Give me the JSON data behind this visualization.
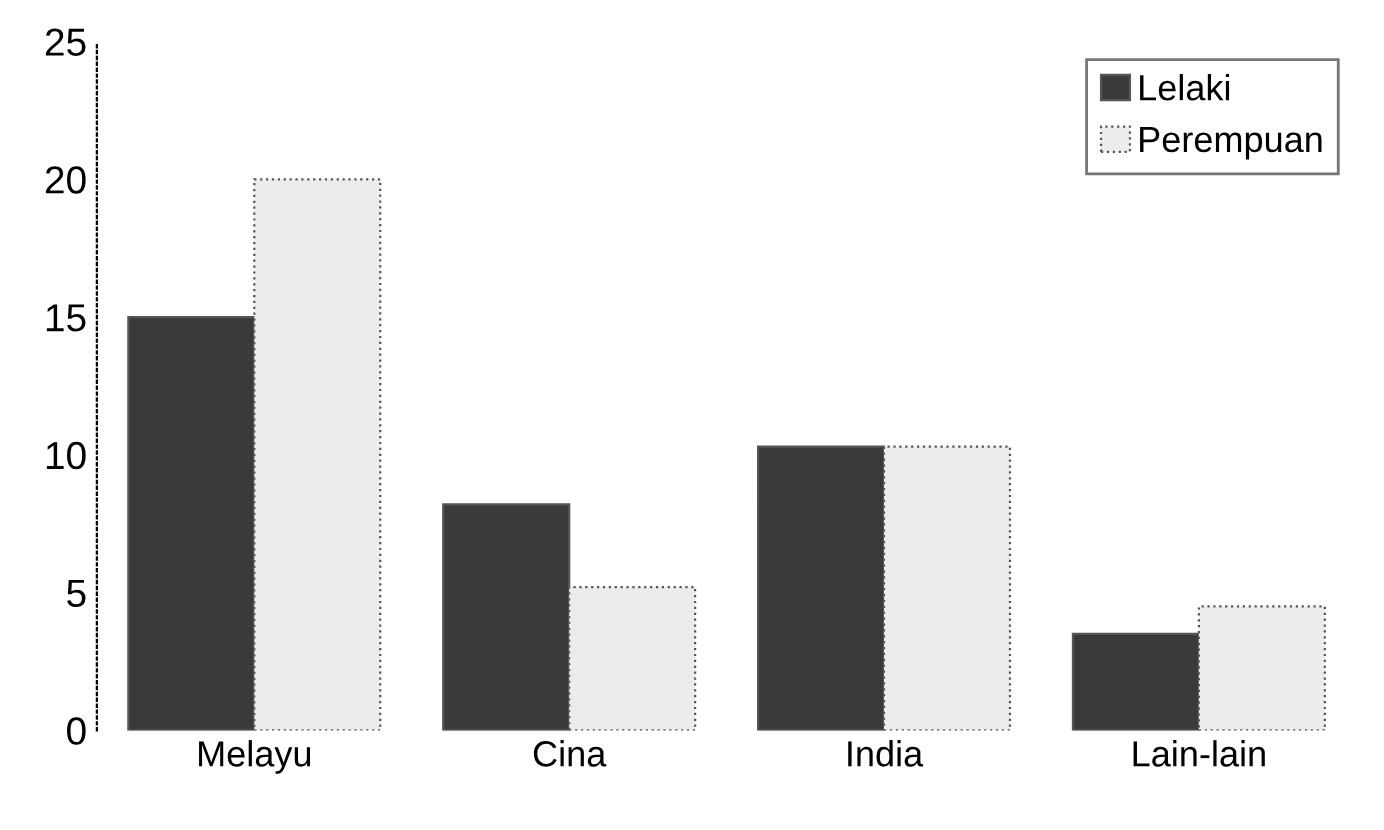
{
  "chart_data": {
    "type": "bar",
    "categories": [
      "Melayu",
      "Cina",
      "India",
      "Lain-lain"
    ],
    "series": [
      {
        "name": "Lelaki",
        "color": "#3a3a3a",
        "values": [
          15,
          8.2,
          10.3,
          3.5
        ]
      },
      {
        "name": "Perempuan",
        "color": "#ececec",
        "values": [
          20,
          5.2,
          10.3,
          4.5
        ]
      }
    ],
    "ylim": [
      0,
      25
    ],
    "yticks": [
      0,
      5,
      10,
      15,
      20,
      25
    ],
    "grid": false,
    "legend": "top right"
  }
}
